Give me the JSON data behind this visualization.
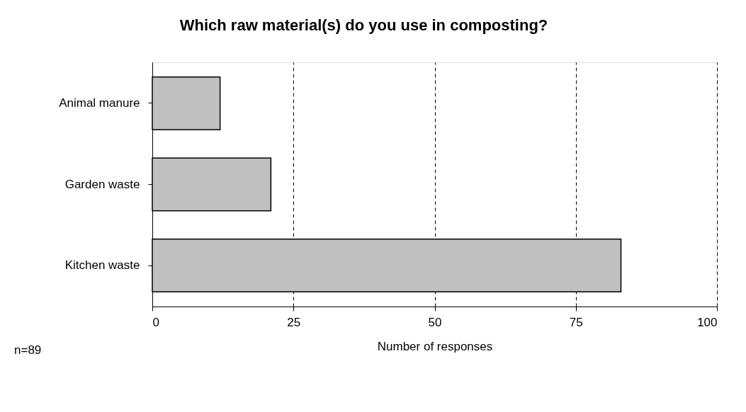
{
  "chart_data": {
    "type": "bar",
    "orientation": "horizontal",
    "title": "Which raw material(s) do you use in composting?",
    "categories": [
      "Animal manure",
      "Garden waste",
      "Kitchen waste"
    ],
    "values": [
      12,
      21,
      83
    ],
    "color": "#c0c0c0",
    "xlim": [
      0,
      100
    ],
    "xticks": [
      0,
      25,
      50,
      75,
      100
    ],
    "xlabel": "Number of responses",
    "grid": "x",
    "line_style": "dashed",
    "annotations": [
      "n=89"
    ]
  }
}
